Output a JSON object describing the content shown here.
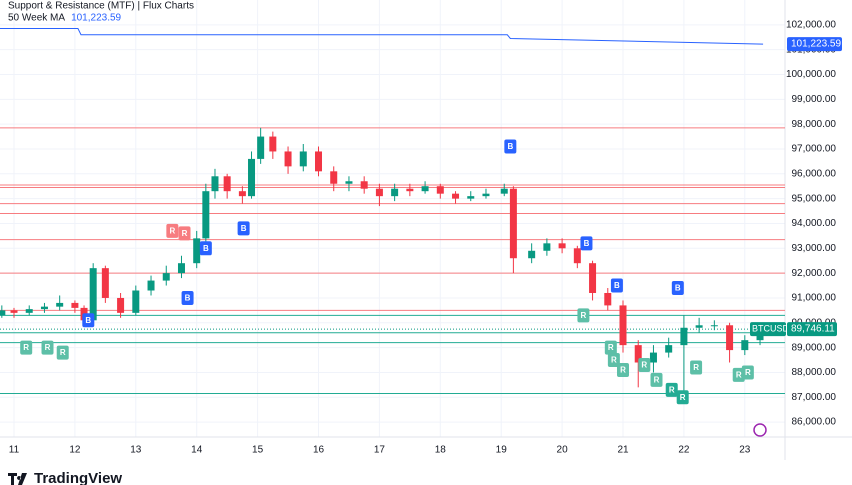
{
  "chart_data": {
    "type": "candlestick",
    "title": "Support & Resistance (MTF) | Flux Charts",
    "up_color": "#089981",
    "down_color": "#f23645",
    "x": [
      10.8,
      11,
      11.25,
      11.5,
      11.75,
      12,
      12.15,
      12.3,
      12.5,
      12.75,
      13,
      13.25,
      13.5,
      13.75,
      14,
      14.15,
      14.3,
      14.5,
      14.75,
      14.9,
      15.05,
      15.25,
      15.5,
      15.75,
      16,
      16.25,
      16.5,
      16.75,
      17,
      17.25,
      17.5,
      17.75,
      18,
      18.25,
      18.5,
      18.75,
      19.05,
      19.2,
      19.5,
      19.75,
      20,
      20.25,
      20.5,
      20.75,
      21,
      21.25,
      21.5,
      21.75,
      22,
      22.25,
      22.5,
      22.75,
      23,
      23.25
    ],
    "open": [
      90300,
      90500,
      90400,
      90550,
      90650,
      90800,
      90600,
      90100,
      92200,
      91000,
      90400,
      91300,
      91700,
      92000,
      92400,
      93400,
      95300,
      95900,
      95300,
      95100,
      96600,
      97500,
      96900,
      96300,
      96900,
      96100,
      95600,
      95700,
      95400,
      95100,
      95400,
      95300,
      95500,
      95200,
      95000,
      95100,
      95200,
      95400,
      92600,
      92900,
      93200,
      93000,
      92400,
      91200,
      90700,
      89100,
      88400,
      88800,
      89100,
      89800,
      89900,
      89900,
      88900,
      89300
    ],
    "high": [
      90700,
      90600,
      90700,
      90800,
      91100,
      90900,
      90700,
      92400,
      92300,
      91200,
      91500,
      91900,
      92300,
      92700,
      93700,
      95600,
      96200,
      96000,
      95500,
      96900,
      97850,
      97700,
      97100,
      97200,
      97100,
      96300,
      95900,
      95900,
      95600,
      95600,
      95600,
      95700,
      95600,
      95300,
      95300,
      95400,
      95600,
      95500,
      93200,
      93400,
      93400,
      93100,
      92500,
      91400,
      90900,
      89300,
      89100,
      89400,
      90300,
      90200,
      90100,
      90000,
      89500,
      89900
    ],
    "low": [
      90200,
      90200,
      90300,
      90400,
      90500,
      90400,
      89900,
      90000,
      90800,
      90200,
      90300,
      91100,
      91500,
      91800,
      92200,
      93200,
      95000,
      95000,
      94800,
      95000,
      96400,
      96600,
      96000,
      96100,
      95900,
      95300,
      95300,
      95200,
      94700,
      94900,
      95100,
      95200,
      95000,
      94800,
      94900,
      95000,
      95100,
      92000,
      92400,
      92700,
      92800,
      92200,
      90900,
      90500,
      88800,
      87400,
      88000,
      88600,
      87000,
      89600,
      89700,
      88400,
      88700,
      89100
    ],
    "close": [
      90500,
      90400,
      90550,
      90650,
      90800,
      90600,
      90100,
      92200,
      91000,
      90400,
      91300,
      91700,
      92000,
      92400,
      93400,
      95300,
      95900,
      95300,
      95100,
      96600,
      97500,
      96900,
      96300,
      96900,
      96100,
      95600,
      95700,
      95400,
      95100,
      95400,
      95300,
      95500,
      95200,
      95000,
      95100,
      95200,
      95400,
      92600,
      92900,
      93200,
      93000,
      92400,
      91200,
      90700,
      89100,
      88400,
      88800,
      89100,
      89800,
      89900,
      89900,
      88900,
      89300,
      89750
    ],
    "xlim": [
      10.77,
      23.66
    ],
    "xticks": [
      11,
      12,
      13,
      14,
      15,
      16,
      17,
      18,
      19,
      20,
      21,
      22,
      23
    ],
    "ylim": [
      85400,
      103000
    ],
    "yticks": [
      {
        "value": 102000,
        "label": "102,000.00"
      },
      {
        "value": 101000,
        "label": "101,000.00"
      },
      {
        "value": 100000,
        "label": "100,000.00"
      },
      {
        "value": 99000,
        "label": "99,000.00"
      },
      {
        "value": 98000,
        "label": "98,000.00"
      },
      {
        "value": 97000,
        "label": "97,000.00"
      },
      {
        "value": 96000,
        "label": "96,000.00"
      },
      {
        "value": 95000,
        "label": "95,000.00"
      },
      {
        "value": 94000,
        "label": "94,000.00"
      },
      {
        "value": 93000,
        "label": "93,000.00"
      },
      {
        "value": 92000,
        "label": "92,000.00"
      },
      {
        "value": 91000,
        "label": "91,000.00"
      },
      {
        "value": 90000,
        "label": "90,000.00"
      },
      {
        "value": 89000,
        "label": "89,000.00"
      },
      {
        "value": 88000,
        "label": "88,000.00"
      },
      {
        "value": 87000,
        "label": "87,000.00"
      },
      {
        "value": 86000,
        "label": "86,000.00"
      }
    ],
    "grid": true,
    "ma": {
      "name": "50 Week MA",
      "color": "#2962ff",
      "x": [
        10.77,
        12.05,
        12.1,
        19.1,
        19.15,
        23.3
      ],
      "values": [
        101850,
        101850,
        101600,
        101600,
        101450,
        101223.59
      ],
      "last_label": "101,223.59"
    },
    "levels": [
      {
        "value": 97850,
        "color": "#f77c80"
      },
      {
        "value": 95550,
        "color": "#f77c80"
      },
      {
        "value": 95450,
        "color": "#f77c80"
      },
      {
        "value": 94800,
        "color": "#f77c80"
      },
      {
        "value": 94400,
        "color": "#f77c80"
      },
      {
        "value": 93350,
        "color": "#f77c80"
      },
      {
        "value": 92000,
        "color": "#f77c80"
      },
      {
        "value": 90500,
        "color": "#f77c80"
      },
      {
        "value": 90300,
        "color": "#22ab94"
      },
      {
        "value": 89600,
        "color": "#22ab94"
      },
      {
        "value": 89200,
        "color": "#22ab94"
      },
      {
        "value": 87150,
        "color": "#22ab94"
      }
    ],
    "markers": [
      {
        "x": 12.22,
        "price": 90100,
        "label": "B",
        "color": "#2962ff"
      },
      {
        "x": 13.85,
        "price": 91000,
        "label": "B",
        "color": "#2962ff"
      },
      {
        "x": 14.15,
        "price": 93000,
        "label": "B",
        "color": "#2962ff"
      },
      {
        "x": 14.77,
        "price": 93800,
        "label": "B",
        "color": "#2962ff"
      },
      {
        "x": 19.15,
        "price": 97100,
        "label": "B",
        "color": "#2962ff"
      },
      {
        "x": 20.4,
        "price": 93200,
        "label": "B",
        "color": "#2962ff"
      },
      {
        "x": 20.9,
        "price": 91500,
        "label": "B",
        "color": "#2962ff"
      },
      {
        "x": 21.9,
        "price": 91400,
        "label": "B",
        "color": "#2962ff"
      },
      {
        "x": 11.2,
        "price": 89000,
        "label": "R",
        "color": "#5dbfa7"
      },
      {
        "x": 11.55,
        "price": 89000,
        "label": "R",
        "color": "#5dbfa7"
      },
      {
        "x": 11.8,
        "price": 88800,
        "label": "R",
        "color": "#5dbfa7"
      },
      {
        "x": 13.6,
        "price": 93700,
        "label": "R",
        "color": "#f77c80"
      },
      {
        "x": 13.8,
        "price": 93600,
        "label": "R",
        "color": "#f77c80"
      },
      {
        "x": 20.35,
        "price": 90300,
        "label": "R",
        "color": "#5dbfa7"
      },
      {
        "x": 20.8,
        "price": 89000,
        "label": "R",
        "color": "#5dbfa7"
      },
      {
        "x": 20.85,
        "price": 88500,
        "label": "R",
        "color": "#5dbfa7"
      },
      {
        "x": 21.0,
        "price": 88100,
        "label": "R",
        "color": "#5dbfa7"
      },
      {
        "x": 21.35,
        "price": 88300,
        "label": "R",
        "color": "#5dbfa7"
      },
      {
        "x": 21.55,
        "price": 87700,
        "label": "R",
        "color": "#5dbfa7"
      },
      {
        "x": 21.8,
        "price": 87300,
        "label": "R",
        "color": "#22ab94"
      },
      {
        "x": 21.98,
        "price": 87000,
        "label": "R",
        "color": "#22ab94"
      },
      {
        "x": 22.2,
        "price": 88200,
        "label": "R",
        "color": "#5dbfa7"
      },
      {
        "x": 22.9,
        "price": 87900,
        "label": "R",
        "color": "#5dbfa7"
      },
      {
        "x": 23.05,
        "price": 88000,
        "label": "R",
        "color": "#5dbfa7"
      }
    ],
    "last": {
      "symbol": "BTCUSD",
      "value": 89746.11,
      "label": "89,746.11",
      "color": "#089981"
    }
  },
  "brand": "TradingView"
}
